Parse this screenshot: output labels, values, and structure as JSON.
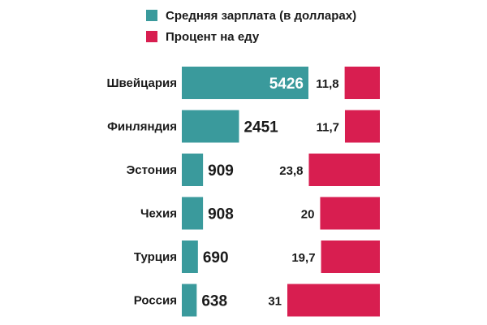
{
  "chart_data": {
    "type": "bar",
    "categories": [
      "Швейцария",
      "Финляндия",
      "Эстония",
      "Чехия",
      "Турция",
      "Россия"
    ],
    "series": [
      {
        "name": "Средняя зарплата (в долларах)",
        "color": "#3a9a9c",
        "values": [
          5426,
          2451,
          909,
          908,
          690,
          638
        ],
        "labels": [
          "5426",
          "2451",
          "909",
          "908",
          "690",
          "638"
        ]
      },
      {
        "name": "Процент на еду",
        "color": "#d81e50",
        "values": [
          11.8,
          11.7,
          23.8,
          20,
          19.7,
          31
        ],
        "labels": [
          "11,8",
          "11,7",
          "23,8",
          "20",
          "19,7",
          "31"
        ]
      }
    ],
    "legend_position": "top",
    "grid": false
  }
}
